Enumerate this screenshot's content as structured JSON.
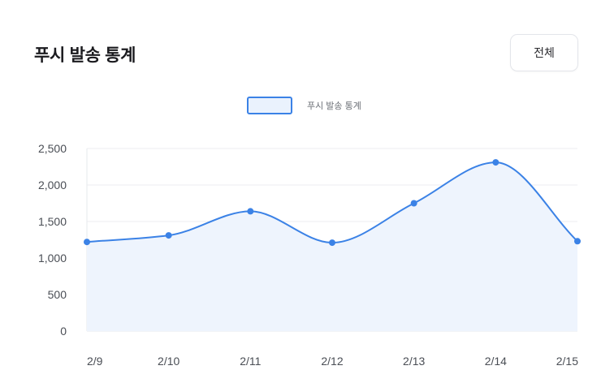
{
  "header": {
    "title": "푸시 발송 통계",
    "filter_label": "전체"
  },
  "legend": {
    "label": "푸시 발송 통계"
  },
  "colors": {
    "line": "#3b82e6",
    "area": "#eef4fd",
    "grid": "#eceef2"
  },
  "chart_data": {
    "type": "area",
    "categories": [
      "2/9",
      "2/10",
      "2/11",
      "2/12",
      "2/13",
      "2/14",
      "2/15"
    ],
    "series": [
      {
        "name": "푸시 발송 통계",
        "values": [
          1220,
          1310,
          1640,
          1210,
          1750,
          2310,
          1230
        ]
      }
    ],
    "ylim": [
      0,
      2500
    ],
    "yticks": [
      "0",
      "500",
      "1,000",
      "1,500",
      "2,000",
      "2,500"
    ],
    "ytick_values": [
      0,
      500,
      1000,
      1500,
      2000,
      2500
    ],
    "grid": true,
    "legend_position": "top-center",
    "curve": "smooth"
  }
}
